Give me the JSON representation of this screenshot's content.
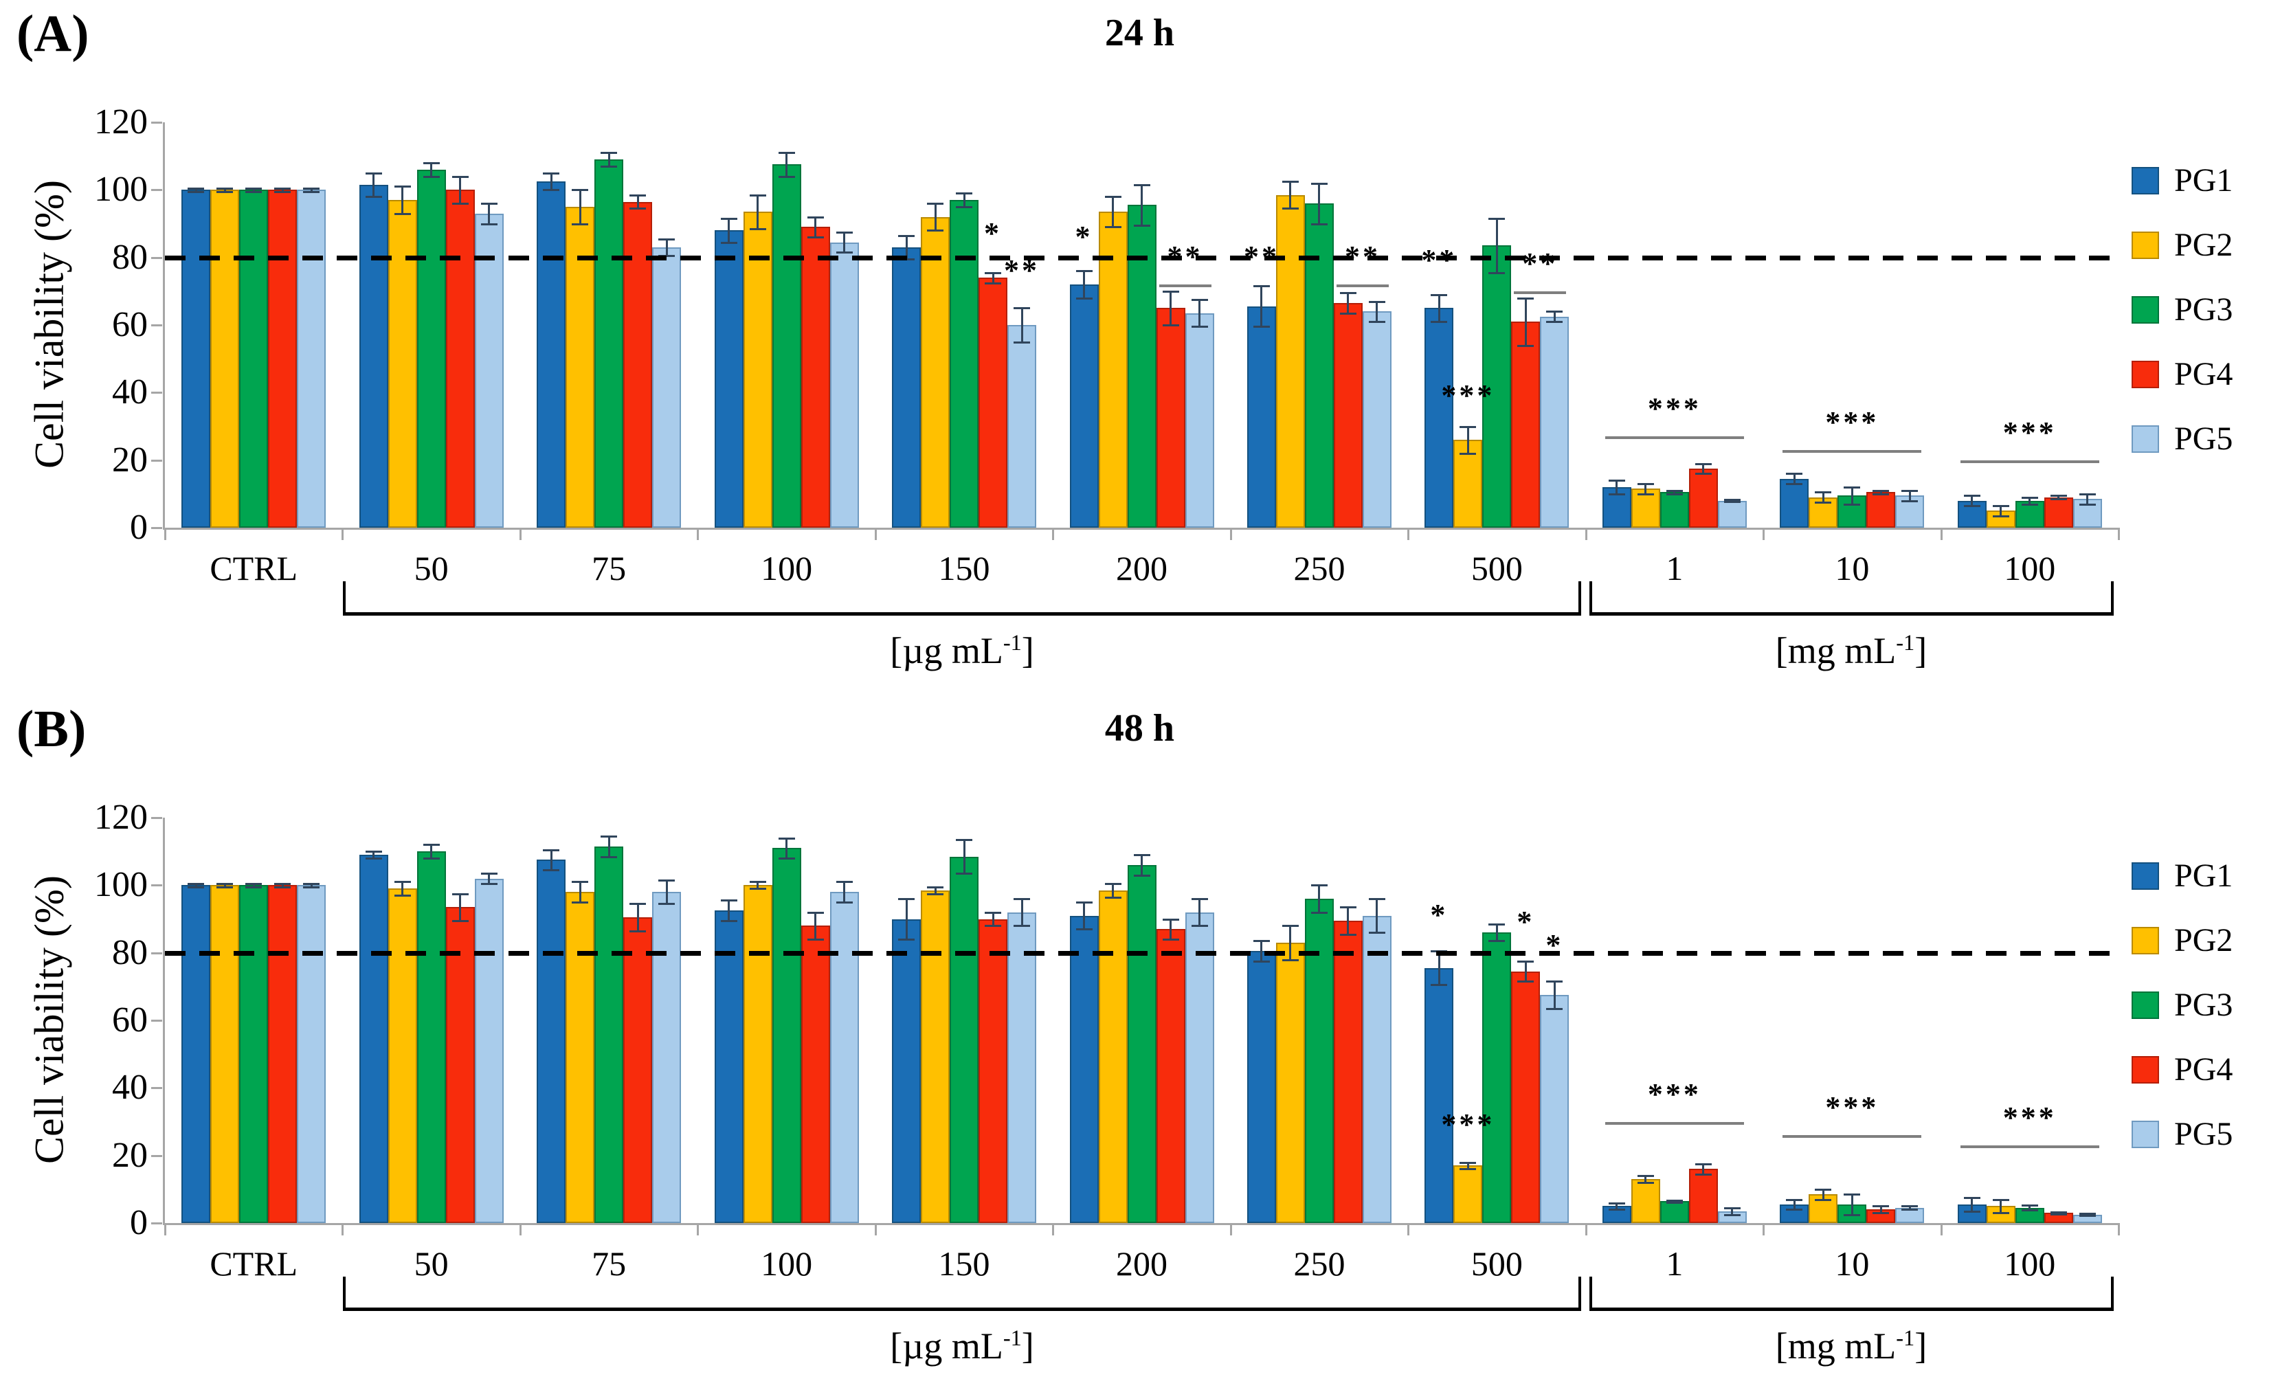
{
  "figure": {
    "ylabel": "Cell viability (%)",
    "yticks": [
      0,
      20,
      40,
      60,
      80,
      100,
      120
    ],
    "dashed_reference_line": 80,
    "units": {
      "ug_pre": "[µg mL",
      "ug_sup": "-1",
      "ug_post": "]",
      "mg_pre": "[mg mL",
      "mg_sup": "-1",
      "mg_post": "]"
    },
    "legend": [
      {
        "label": "PG1",
        "color": "#1B6EB5",
        "border": "#14517F"
      },
      {
        "label": "PG2",
        "color": "#FFC000",
        "border": "#B98A00"
      },
      {
        "label": "PG3",
        "color": "#00A550",
        "border": "#00753A"
      },
      {
        "label": "PG4",
        "color": "#F82C0C",
        "border": "#B51F08"
      },
      {
        "label": "PG5",
        "color": "#A9CCEB",
        "border": "#6F9AC0"
      }
    ]
  },
  "chart_data": [
    {
      "type": "bar",
      "panel": "(A)",
      "title": "24 h",
      "ylabel": "Cell viability (%)",
      "ylim": [
        0,
        120
      ],
      "ref_line": 80,
      "grid": false,
      "legend_position": "right",
      "categories": [
        "CTRL",
        "50",
        "75",
        "100",
        "150",
        "200",
        "250",
        "500",
        "1",
        "10",
        "100"
      ],
      "unit_groups": {
        "ug_mL": [
          "50",
          "75",
          "100",
          "150",
          "200",
          "250",
          "500"
        ],
        "mg_mL": [
          "1",
          "10",
          "100"
        ]
      },
      "series": [
        {
          "name": "PG1",
          "values": [
            100,
            101.5,
            102.5,
            88,
            83,
            72,
            65.5,
            65,
            12,
            14.5,
            8
          ],
          "errors": [
            0.5,
            3.5,
            2.5,
            3.5,
            3.5,
            4,
            6,
            4,
            2,
            1.5,
            1.5
          ]
        },
        {
          "name": "PG2",
          "values": [
            100,
            97,
            95,
            93.5,
            92,
            93.5,
            98.5,
            26,
            11.5,
            9,
            5
          ],
          "errors": [
            0.5,
            4,
            5,
            5,
            4,
            4.5,
            4,
            4,
            1.5,
            1.5,
            1.5
          ]
        },
        {
          "name": "PG3",
          "values": [
            100,
            106,
            109,
            107.5,
            97,
            95.5,
            96,
            83.5,
            10.5,
            9.5,
            8
          ],
          "errors": [
            0.5,
            2,
            2,
            3.5,
            2,
            6,
            6,
            8,
            0.5,
            2.5,
            1
          ]
        },
        {
          "name": "PG4",
          "values": [
            100,
            100,
            96.5,
            89,
            74,
            65,
            66.5,
            61,
            17.5,
            10.5,
            9
          ],
          "errors": [
            0.5,
            4,
            2,
            3,
            1.5,
            5,
            3,
            7,
            1.5,
            0.5,
            0.5
          ]
        },
        {
          "name": "PG5",
          "values": [
            100,
            93,
            83,
            84.5,
            60,
            63.5,
            64,
            62.5,
            8,
            9.5,
            8.5
          ],
          "errors": [
            0.5,
            3,
            2.5,
            3,
            5,
            4,
            3,
            1.5,
            0.3,
            1.5,
            1.5
          ]
        }
      ],
      "significance": [
        {
          "group": 4,
          "series": 3,
          "label": "*",
          "y": 81
        },
        {
          "group": 4,
          "series": 4,
          "label": "**",
          "y": 70
        },
        {
          "group": 5,
          "series": 0,
          "label": "*",
          "y": 80
        },
        {
          "group": 5,
          "line": [
            3,
            4
          ],
          "label": "**",
          "y": 72
        },
        {
          "group": 6,
          "series": 0,
          "label": "**",
          "y": 74
        },
        {
          "group": 6,
          "line": [
            3,
            4
          ],
          "label": "**",
          "y": 72
        },
        {
          "group": 7,
          "series": 0,
          "label": "**",
          "y": 73
        },
        {
          "group": 7,
          "series": 1,
          "label": "***",
          "y": 33
        },
        {
          "group": 7,
          "line": [
            3,
            4
          ],
          "label": "**",
          "y": 70
        },
        {
          "group": 8,
          "line": [
            0,
            4
          ],
          "label": "***",
          "y": 27
        },
        {
          "group": 9,
          "line": [
            0,
            4
          ],
          "label": "***",
          "y": 23
        },
        {
          "group": 10,
          "line": [
            0,
            4
          ],
          "label": "***",
          "y": 20
        }
      ]
    },
    {
      "type": "bar",
      "panel": "(B)",
      "title": "48 h",
      "ylabel": "Cell viability (%)",
      "ylim": [
        0,
        120
      ],
      "ref_line": 80,
      "grid": false,
      "legend_position": "right",
      "categories": [
        "CTRL",
        "50",
        "75",
        "100",
        "150",
        "200",
        "250",
        "500",
        "1",
        "10",
        "100"
      ],
      "unit_groups": {
        "ug_mL": [
          "50",
          "75",
          "100",
          "150",
          "200",
          "250",
          "500"
        ],
        "mg_mL": [
          "1",
          "10",
          "100"
        ]
      },
      "series": [
        {
          "name": "PG1",
          "values": [
            100,
            109,
            107.5,
            92.5,
            90,
            91,
            80.5,
            75.5,
            5,
            5.5,
            5.5
          ],
          "errors": [
            0.5,
            1,
            3,
            3,
            6,
            4,
            3,
            5,
            1,
            1.5,
            2
          ]
        },
        {
          "name": "PG2",
          "values": [
            100,
            99,
            98,
            100,
            98.5,
            98.5,
            83,
            17,
            13,
            8.5,
            5
          ],
          "errors": [
            0.5,
            2,
            3,
            1,
            1,
            2,
            5,
            1,
            1,
            1.5,
            2
          ]
        },
        {
          "name": "PG3",
          "values": [
            100,
            110,
            111.5,
            111,
            108.5,
            106,
            96,
            86,
            6.5,
            5.5,
            4.5
          ],
          "errors": [
            0.5,
            2,
            3,
            3,
            5,
            3,
            4,
            2.5,
            0.3,
            3,
            0.7
          ]
        },
        {
          "name": "PG4",
          "values": [
            100,
            93.5,
            90.5,
            88,
            90,
            87,
            89.5,
            74.5,
            16,
            4,
            3
          ],
          "errors": [
            0.5,
            4,
            4,
            4,
            2,
            3,
            4,
            3,
            1.5,
            1,
            0.3
          ]
        },
        {
          "name": "PG5",
          "values": [
            100,
            102,
            98,
            98,
            92,
            92,
            91,
            67.5,
            3.5,
            4.5,
            2.5
          ],
          "errors": [
            0.5,
            1.5,
            3.5,
            3,
            4,
            4,
            5,
            4,
            1,
            0.5,
            0.3
          ]
        }
      ],
      "significance": [
        {
          "group": 7,
          "series": 0,
          "label": "*",
          "y": 85
        },
        {
          "group": 7,
          "series": 1,
          "label": "***",
          "y": 23
        },
        {
          "group": 7,
          "series": 3,
          "label": "*",
          "y": 83
        },
        {
          "group": 7,
          "series": 4,
          "label": "*",
          "y": 76
        },
        {
          "group": 8,
          "line": [
            0,
            4
          ],
          "label": "***",
          "y": 30
        },
        {
          "group": 9,
          "line": [
            0,
            4
          ],
          "label": "***",
          "y": 26
        },
        {
          "group": 10,
          "line": [
            0,
            4
          ],
          "label": "***",
          "y": 23
        }
      ]
    }
  ]
}
